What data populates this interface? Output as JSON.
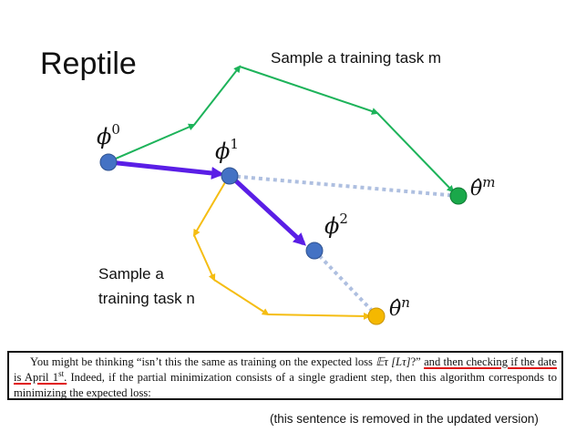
{
  "title": "Reptile",
  "caption_m": "Sample a training task m",
  "caption_n_line1": "Sample a",
  "caption_n_line2": "training task n",
  "labels": {
    "phi0": {
      "base": "ϕ",
      "sup": "0"
    },
    "phi1": {
      "base": "ϕ",
      "sup": "1"
    },
    "phi2": {
      "base": "ϕ",
      "sup": "2"
    },
    "theta_m": {
      "base": "θ̂",
      "sup": "m"
    },
    "theta_n": {
      "base": "θ̂",
      "sup": "n"
    }
  },
  "excerpt": {
    "part1": "You might be thinking “isn’t this the same as training on the expected loss ",
    "math": "𝔼τ [Lτ]",
    "part2": "?” ",
    "ul1": "and then checking if the date is April 1",
    "ul1_sup": "st",
    "ul1_end": ".",
    "part3": " Indeed, if the partial minimization consists of a single gradient step, then this algorithm corresponds to minimizing the expected loss:"
  },
  "note": "(this sentence is removed in the updated version)",
  "colors": {
    "green": "#1db35a",
    "purple": "#5a1ee6",
    "yellow": "#f5bd12",
    "dotted": "#aebfe0",
    "node_blue": "#4472c4",
    "node_green": "#1aa84a",
    "node_yellow": "#f5b800",
    "underline": "#e01010"
  }
}
